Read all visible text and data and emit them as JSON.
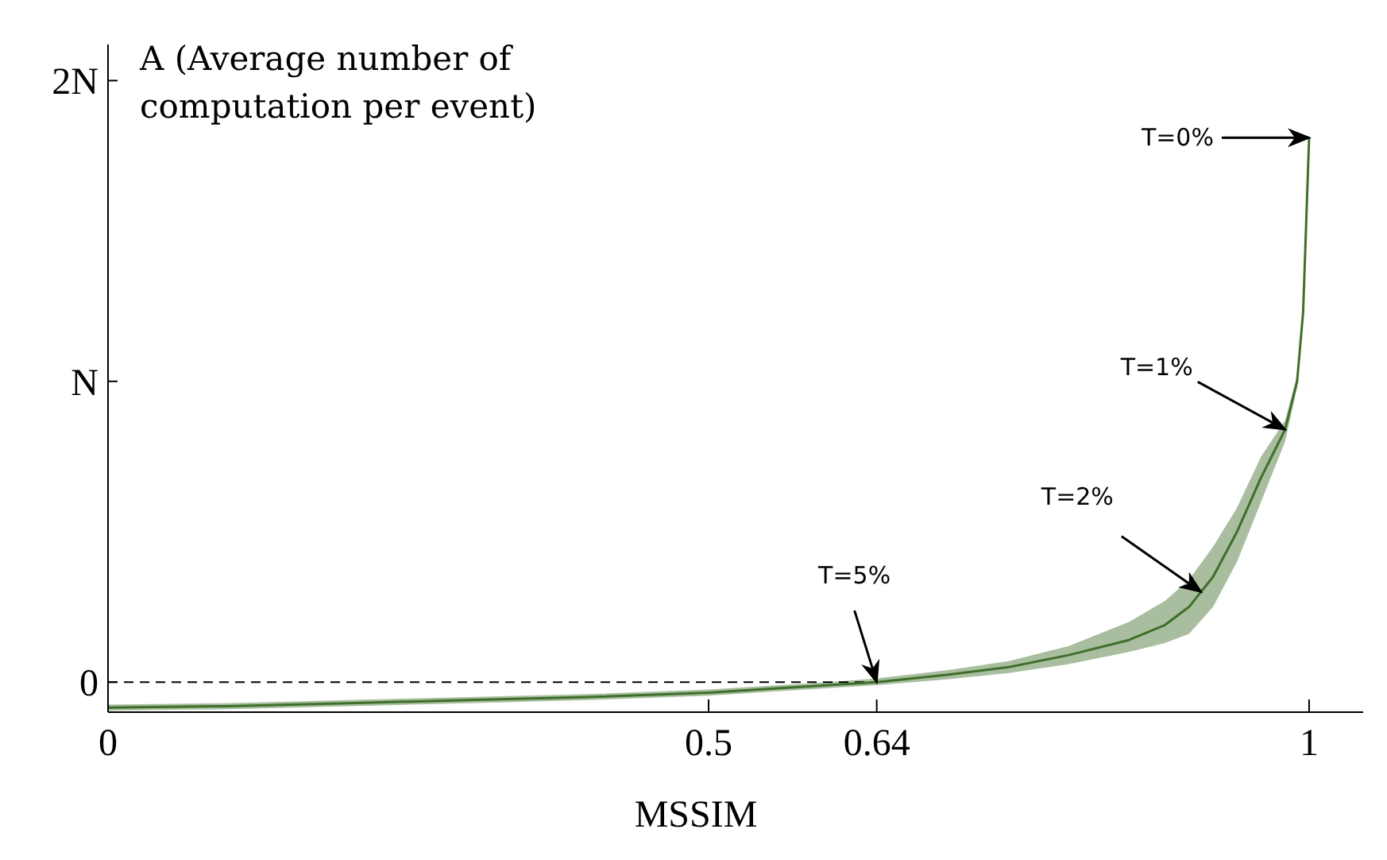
{
  "chart_data": {
    "type": "line",
    "ylabel": "A (Average number of computation per event)",
    "xlabel": "MSSIM",
    "x": [
      0,
      0.1,
      0.2,
      0.3,
      0.4,
      0.5,
      0.6,
      0.64,
      0.7,
      0.75,
      0.8,
      0.85,
      0.88,
      0.9,
      0.92,
      0.94,
      0.96,
      0.98,
      0.99,
      0.995,
      1
    ],
    "series": [
      {
        "color": "#3f6f2a",
        "values": [
          -0.085,
          -0.08,
          -0.07,
          -0.06,
          -0.05,
          -0.035,
          -0.01,
          0,
          0.025,
          0.05,
          0.09,
          0.14,
          0.19,
          0.25,
          0.35,
          0.5,
          0.68,
          0.84,
          1.0,
          1.23,
          1.81
        ],
        "lower": [
          -0.095,
          -0.09,
          -0.08,
          -0.07,
          -0.06,
          -0.045,
          -0.02,
          -0.01,
          0.01,
          0.03,
          0.06,
          0.1,
          0.13,
          0.16,
          0.25,
          0.4,
          0.6,
          0.8,
          0.98,
          1.22,
          1.8
        ],
        "upper": [
          -0.075,
          -0.07,
          -0.06,
          -0.05,
          -0.04,
          -0.025,
          0,
          0.012,
          0.04,
          0.07,
          0.12,
          0.2,
          0.27,
          0.34,
          0.45,
          0.58,
          0.75,
          0.87,
          1.02,
          1.24,
          1.82
        ]
      }
    ],
    "xlim": [
      0,
      1.045
    ],
    "ylim": [
      -0.1,
      2.12
    ],
    "xticks": [
      0,
      0.5,
      0.64,
      1
    ],
    "yticks": [
      {
        "value": 0,
        "label": "0"
      },
      {
        "value": 1,
        "label": "N"
      },
      {
        "value": 2,
        "label": "2N"
      }
    ],
    "ref_lines": [
      {
        "axis": "y",
        "value": 0,
        "line_style": "dashed",
        "color": "#000000"
      }
    ],
    "annotations": [
      {
        "text": "T=0%",
        "x": 1,
        "y": 1.81
      },
      {
        "text": "T=1%",
        "x": 0.98,
        "y": 0.84
      },
      {
        "text": "T=2%",
        "x": 0.91,
        "y": 0.3
      },
      {
        "text": "T=5%",
        "x": 0.64,
        "y": 0
      }
    ],
    "marker": "none",
    "line_style": "solid"
  }
}
